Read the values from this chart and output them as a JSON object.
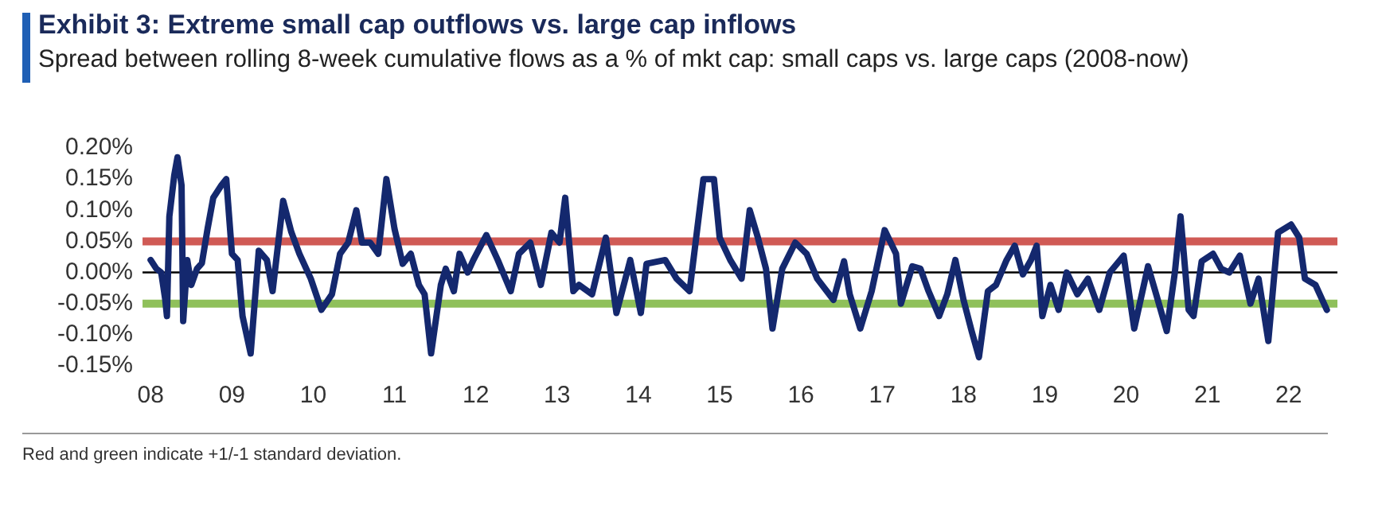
{
  "chart_data": {
    "type": "line",
    "title": "Exhibit 3: Extreme small cap outflows vs. large cap inflows",
    "subtitle": "Spread between rolling 8-week cumulative flows as a % of mkt cap: small caps vs. large caps (2008-now)",
    "annotations": [
      "Red and green indicate +1/-1 standard deviation."
    ],
    "xlim": [
      2007.9,
      2022.6
    ],
    "xticks": [
      {
        "value": 2008,
        "label": "08"
      },
      {
        "value": 2009,
        "label": "09"
      },
      {
        "value": 2010,
        "label": "10"
      },
      {
        "value": 2011,
        "label": "11"
      },
      {
        "value": 2012,
        "label": "12"
      },
      {
        "value": 2013,
        "label": "13"
      },
      {
        "value": 2014,
        "label": "14"
      },
      {
        "value": 2015,
        "label": "15"
      },
      {
        "value": 2016,
        "label": "16"
      },
      {
        "value": 2017,
        "label": "17"
      },
      {
        "value": 2018,
        "label": "18"
      },
      {
        "value": 2019,
        "label": "19"
      },
      {
        "value": 2020,
        "label": "20"
      },
      {
        "value": 2021,
        "label": "21"
      },
      {
        "value": 2022,
        "label": "22"
      }
    ],
    "ylim": [
      -0.15,
      0.2
    ],
    "yticks": [
      {
        "value": -0.15,
        "label": "-0.15%"
      },
      {
        "value": -0.1,
        "label": "-0.10%"
      },
      {
        "value": -0.05,
        "label": "-0.05%"
      },
      {
        "value": 0,
        "label": "0.00%"
      },
      {
        "value": 0.05,
        "label": "0.05%"
      },
      {
        "value": 0.1,
        "label": "0.10%"
      },
      {
        "value": 0.15,
        "label": "0.15%"
      },
      {
        "value": 0.2,
        "label": "0.20%"
      }
    ],
    "grid": false,
    "legend": false,
    "marker": "none",
    "line_style": "solid",
    "ref_lines": [
      {
        "axis": "y",
        "value": 0.05,
        "color": "#d05a55"
      },
      {
        "axis": "y",
        "value": -0.05,
        "color": "#8fc05a"
      },
      {
        "axis": "y",
        "value": 0,
        "color": "#000000"
      }
    ],
    "series": [
      {
        "color": "#14286e",
        "x": [
          2008.0,
          2008.07,
          2008.13,
          2008.18,
          2008.2,
          2008.23,
          2008.29,
          2008.33,
          2008.38,
          2008.4,
          2008.45,
          2008.5,
          2008.57,
          2008.63,
          2008.7,
          2008.77,
          2008.87,
          2008.93,
          2009.0,
          2009.07,
          2009.13,
          2009.23,
          2009.33,
          2009.43,
          2009.5,
          2009.63,
          2009.73,
          2009.83,
          2009.97,
          2010.1,
          2010.23,
          2010.33,
          2010.43,
          2010.53,
          2010.6,
          2010.7,
          2010.8,
          2010.9,
          2011.0,
          2011.1,
          2011.2,
          2011.3,
          2011.37,
          2011.45,
          2011.57,
          2011.63,
          2011.73,
          2011.8,
          2011.9,
          2011.97,
          2012.13,
          2012.27,
          2012.43,
          2012.53,
          2012.67,
          2012.8,
          2012.93,
          2013.03,
          2013.1,
          2013.2,
          2013.27,
          2013.43,
          2013.6,
          2013.73,
          2013.9,
          2014.03,
          2014.1,
          2014.33,
          2014.47,
          2014.63,
          2014.8,
          2014.93,
          2015.0,
          2015.13,
          2015.27,
          2015.37,
          2015.47,
          2015.57,
          2015.65,
          2015.77,
          2015.93,
          2016.07,
          2016.2,
          2016.4,
          2016.53,
          2016.6,
          2016.73,
          2016.87,
          2017.03,
          2017.17,
          2017.23,
          2017.37,
          2017.47,
          2017.57,
          2017.7,
          2017.8,
          2017.9,
          2018.0,
          2018.1,
          2018.19,
          2018.3,
          2018.4,
          2018.53,
          2018.63,
          2018.73,
          2018.83,
          2018.9,
          2018.97,
          2019.07,
          2019.17,
          2019.27,
          2019.4,
          2019.53,
          2019.67,
          2019.8,
          2019.97,
          2020.1,
          2020.27,
          2020.37,
          2020.5,
          2020.6,
          2020.67,
          2020.77,
          2020.83,
          2020.93,
          2021.07,
          2021.17,
          2021.27,
          2021.4,
          2021.53,
          2021.63,
          2021.75,
          2021.87,
          2022.03,
          2022.13,
          2022.2,
          2022.33,
          2022.47
        ],
        "values": [
          0.02,
          0.006,
          0.0,
          -0.044,
          -0.07,
          0.09,
          0.156,
          0.185,
          0.14,
          -0.078,
          0.02,
          -0.02,
          0.006,
          0.015,
          0.07,
          0.12,
          0.14,
          0.15,
          0.03,
          0.02,
          -0.07,
          -0.13,
          0.035,
          0.02,
          -0.03,
          0.115,
          0.065,
          0.03,
          -0.01,
          -0.06,
          -0.035,
          0.03,
          0.048,
          0.1,
          0.048,
          0.048,
          0.03,
          0.15,
          0.07,
          0.014,
          0.03,
          -0.02,
          -0.035,
          -0.13,
          -0.02,
          0.006,
          -0.03,
          0.03,
          0.0,
          0.02,
          0.06,
          0.02,
          -0.03,
          0.03,
          0.048,
          -0.02,
          0.064,
          0.048,
          0.12,
          -0.03,
          -0.02,
          -0.035,
          0.056,
          -0.065,
          0.02,
          -0.065,
          0.014,
          0.02,
          -0.01,
          -0.03,
          0.15,
          0.15,
          0.056,
          0.02,
          -0.01,
          0.1,
          0.056,
          0.006,
          -0.09,
          0.006,
          0.048,
          0.03,
          -0.01,
          -0.044,
          0.018,
          -0.035,
          -0.09,
          -0.03,
          0.068,
          0.03,
          -0.05,
          0.01,
          0.006,
          -0.03,
          -0.07,
          -0.035,
          0.02,
          -0.044,
          -0.094,
          -0.136,
          -0.03,
          -0.02,
          0.02,
          0.043,
          -0.003,
          0.02,
          0.043,
          -0.07,
          -0.02,
          -0.06,
          0.0,
          -0.035,
          -0.01,
          -0.06,
          0.0,
          0.027,
          -0.09,
          0.01,
          -0.035,
          -0.094,
          0.0,
          0.09,
          -0.06,
          -0.07,
          0.018,
          0.03,
          0.006,
          0.0,
          0.027,
          -0.05,
          -0.01,
          -0.11,
          0.064,
          0.077,
          0.056,
          -0.01,
          -0.02,
          -0.06
        ]
      }
    ]
  }
}
